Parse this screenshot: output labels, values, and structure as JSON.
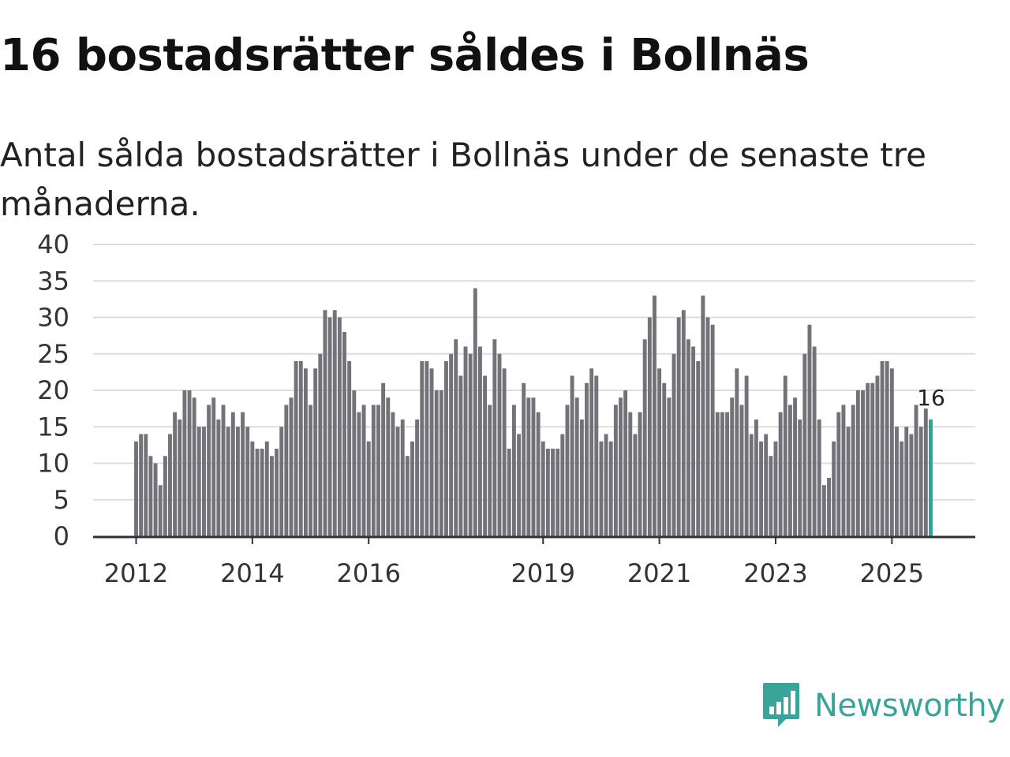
{
  "title": "16 bostadsrätter såldes i Bollnäs",
  "subtitle": "Antal sålda bostadsrätter i Bollnäs under de senaste tre månaderna.",
  "brand": {
    "name": "Newsworthy",
    "color": "#3aa39a",
    "icon": "newsworthy-logo-icon"
  },
  "colors": {
    "bar": "#737278",
    "highlight": "#2aa59a",
    "grid": "#dddddd",
    "axis": "#333333"
  },
  "chart_data": {
    "type": "bar",
    "title": "16 bostadsrätter såldes i Bollnäs",
    "xlabel": "",
    "ylabel": "",
    "ylim": [
      0,
      40
    ],
    "yticks": [
      "0",
      "5",
      "10",
      "15",
      "20",
      "25",
      "30",
      "35",
      "40"
    ],
    "xticks": [
      {
        "label": "2012",
        "index": 0
      },
      {
        "label": "2014",
        "index": 24
      },
      {
        "label": "2016",
        "index": 48
      },
      {
        "label": "2019",
        "index": 84
      },
      {
        "label": "2021",
        "index": 108
      },
      {
        "label": "2023",
        "index": 132
      },
      {
        "label": "2025",
        "index": 156
      }
    ],
    "last_value_label": "16",
    "values": [
      13,
      14,
      14,
      11,
      10,
      7,
      11,
      14,
      17,
      16,
      20,
      20,
      19,
      15,
      15,
      18,
      19,
      16,
      18,
      15,
      17,
      15,
      17,
      15,
      13,
      12,
      12,
      13,
      11,
      12,
      15,
      18,
      19,
      24,
      24,
      23,
      18,
      23,
      25,
      31,
      30,
      31,
      30,
      28,
      24,
      20,
      17,
      18,
      13,
      18,
      18,
      21,
      19,
      17,
      15,
      16,
      11,
      13,
      16,
      24,
      24,
      23,
      20,
      20,
      24,
      25,
      27,
      22,
      26,
      25,
      34,
      26,
      22,
      18,
      27,
      25,
      23,
      12,
      18,
      14,
      21,
      19,
      19,
      17,
      13,
      12,
      12,
      12,
      14,
      18,
      22,
      19,
      16,
      21,
      23,
      22,
      13,
      14,
      13,
      18,
      19,
      20,
      17,
      14,
      17,
      27,
      30,
      33,
      23,
      21,
      19,
      25,
      30,
      31,
      27,
      26,
      24,
      33,
      30,
      29,
      17,
      17,
      17,
      19,
      23,
      18,
      22,
      14,
      16,
      13,
      14,
      11,
      13,
      17,
      22,
      18,
      19,
      16,
      25,
      29,
      26,
      16,
      7,
      8,
      13,
      17,
      18,
      15,
      18,
      20,
      20,
      21,
      21,
      22,
      24,
      24,
      23,
      15,
      13,
      15,
      14,
      18,
      15,
      17.5,
      16
    ]
  }
}
